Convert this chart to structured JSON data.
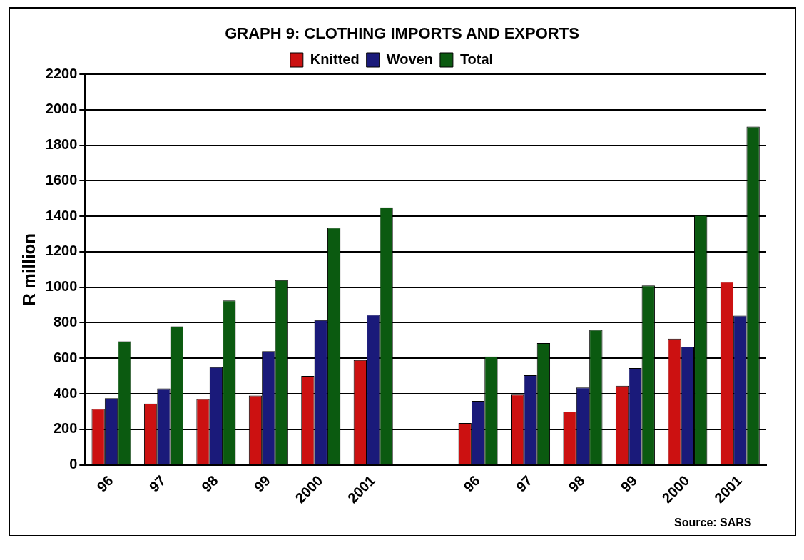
{
  "chart_data": {
    "type": "bar",
    "title": "GRAPH 9: CLOTHING IMPORTS AND EXPORTS",
    "ylabel": "R million",
    "categories": [
      "96",
      "97",
      "98",
      "99",
      "2000",
      "2001",
      null,
      "96",
      "97",
      "98",
      "99",
      "2000",
      "2001"
    ],
    "series": [
      {
        "name": "Knitted",
        "color": "#cc1111",
        "values": [
          315,
          345,
          370,
          390,
          500,
          590,
          null,
          235,
          395,
          300,
          445,
          710,
          1030
        ]
      },
      {
        "name": "Woven",
        "color": "#1a1a7a",
        "values": [
          375,
          430,
          550,
          640,
          815,
          845,
          null,
          360,
          505,
          435,
          545,
          665,
          840
        ]
      },
      {
        "name": "Total",
        "color": "#0b5a10",
        "values": [
          695,
          780,
          925,
          1040,
          1335,
          1450,
          null,
          610,
          685,
          760,
          1010,
          1405,
          1905
        ]
      }
    ],
    "ylim": [
      0,
      2200
    ],
    "yticks": [
      0,
      200,
      400,
      600,
      800,
      1000,
      1200,
      1400,
      1600,
      1800,
      2000,
      2200
    ],
    "grid": "y",
    "legend": "top",
    "annotations": [
      "Source: SARS"
    ]
  }
}
